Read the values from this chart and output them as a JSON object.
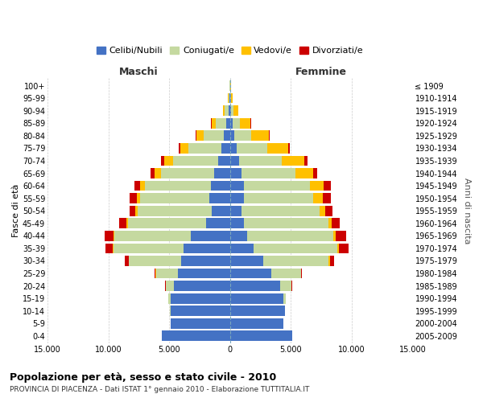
{
  "age_groups": [
    "100+",
    "95-99",
    "90-94",
    "85-89",
    "80-84",
    "75-79",
    "70-74",
    "65-69",
    "60-64",
    "55-59",
    "50-54",
    "45-49",
    "40-44",
    "35-39",
    "30-34",
    "25-29",
    "20-24",
    "15-19",
    "10-14",
    "5-9",
    "0-4"
  ],
  "birth_years": [
    "≤ 1909",
    "1910-1914",
    "1915-1919",
    "1920-1924",
    "1925-1929",
    "1930-1934",
    "1935-1939",
    "1940-1944",
    "1945-1949",
    "1950-1954",
    "1955-1959",
    "1960-1964",
    "1965-1969",
    "1970-1974",
    "1975-1979",
    "1980-1984",
    "1985-1989",
    "1990-1994",
    "1995-1999",
    "2000-2004",
    "2005-2009"
  ],
  "maschi": {
    "celibi": [
      20,
      60,
      150,
      300,
      500,
      700,
      1000,
      1300,
      1600,
      1700,
      1500,
      2000,
      3200,
      3800,
      4000,
      4300,
      4600,
      4900,
      4900,
      4900,
      5600
    ],
    "coniugati": [
      25,
      70,
      280,
      850,
      1700,
      2700,
      3700,
      4400,
      5400,
      5700,
      6100,
      6400,
      6300,
      5800,
      4300,
      1800,
      700,
      150,
      15,
      8,
      3
    ],
    "vedovi": [
      8,
      25,
      130,
      380,
      580,
      680,
      680,
      480,
      380,
      280,
      190,
      140,
      90,
      70,
      40,
      25,
      8,
      4,
      1,
      1,
      1
    ],
    "divorziati": [
      2,
      4,
      8,
      15,
      40,
      130,
      280,
      380,
      480,
      580,
      480,
      580,
      680,
      580,
      280,
      70,
      15,
      4,
      1,
      1,
      1
    ]
  },
  "femmine": {
    "nubili": [
      15,
      40,
      90,
      180,
      350,
      550,
      750,
      950,
      1150,
      1150,
      950,
      1150,
      1400,
      1900,
      2700,
      3400,
      4100,
      4400,
      4500,
      4400,
      5100
    ],
    "coniugate": [
      15,
      50,
      220,
      650,
      1400,
      2500,
      3500,
      4400,
      5400,
      5700,
      6400,
      6900,
      7100,
      6900,
      5400,
      2400,
      950,
      180,
      12,
      6,
      2
    ],
    "vedove": [
      25,
      90,
      380,
      860,
      1450,
      1750,
      1850,
      1450,
      1150,
      750,
      480,
      280,
      180,
      130,
      90,
      35,
      15,
      8,
      2,
      1,
      1
    ],
    "divorziate": [
      2,
      4,
      8,
      15,
      35,
      90,
      230,
      380,
      580,
      680,
      580,
      680,
      880,
      780,
      380,
      90,
      25,
      4,
      1,
      1,
      1
    ]
  },
  "colors": {
    "celibi": "#4472c4",
    "coniugati": "#c5d9a0",
    "vedovi": "#ffc000",
    "divorziati": "#cc0000"
  },
  "legend_labels": [
    "Celibi/Nubili",
    "Coniugati/e",
    "Vedovi/e",
    "Divorziati/e"
  ],
  "xlim": 15000,
  "title": "Popolazione per età, sesso e stato civile - 2010",
  "subtitle": "PROVINCIA DI PIACENZA - Dati ISTAT 1° gennaio 2010 - Elaborazione TUTTITALIA.IT",
  "ylabel_left": "Fasce di età",
  "ylabel_right": "Anni di nascita",
  "maschi_label": "Maschi",
  "femmine_label": "Femmine",
  "background_color": "#ffffff",
  "grid_color": "#cccccc"
}
